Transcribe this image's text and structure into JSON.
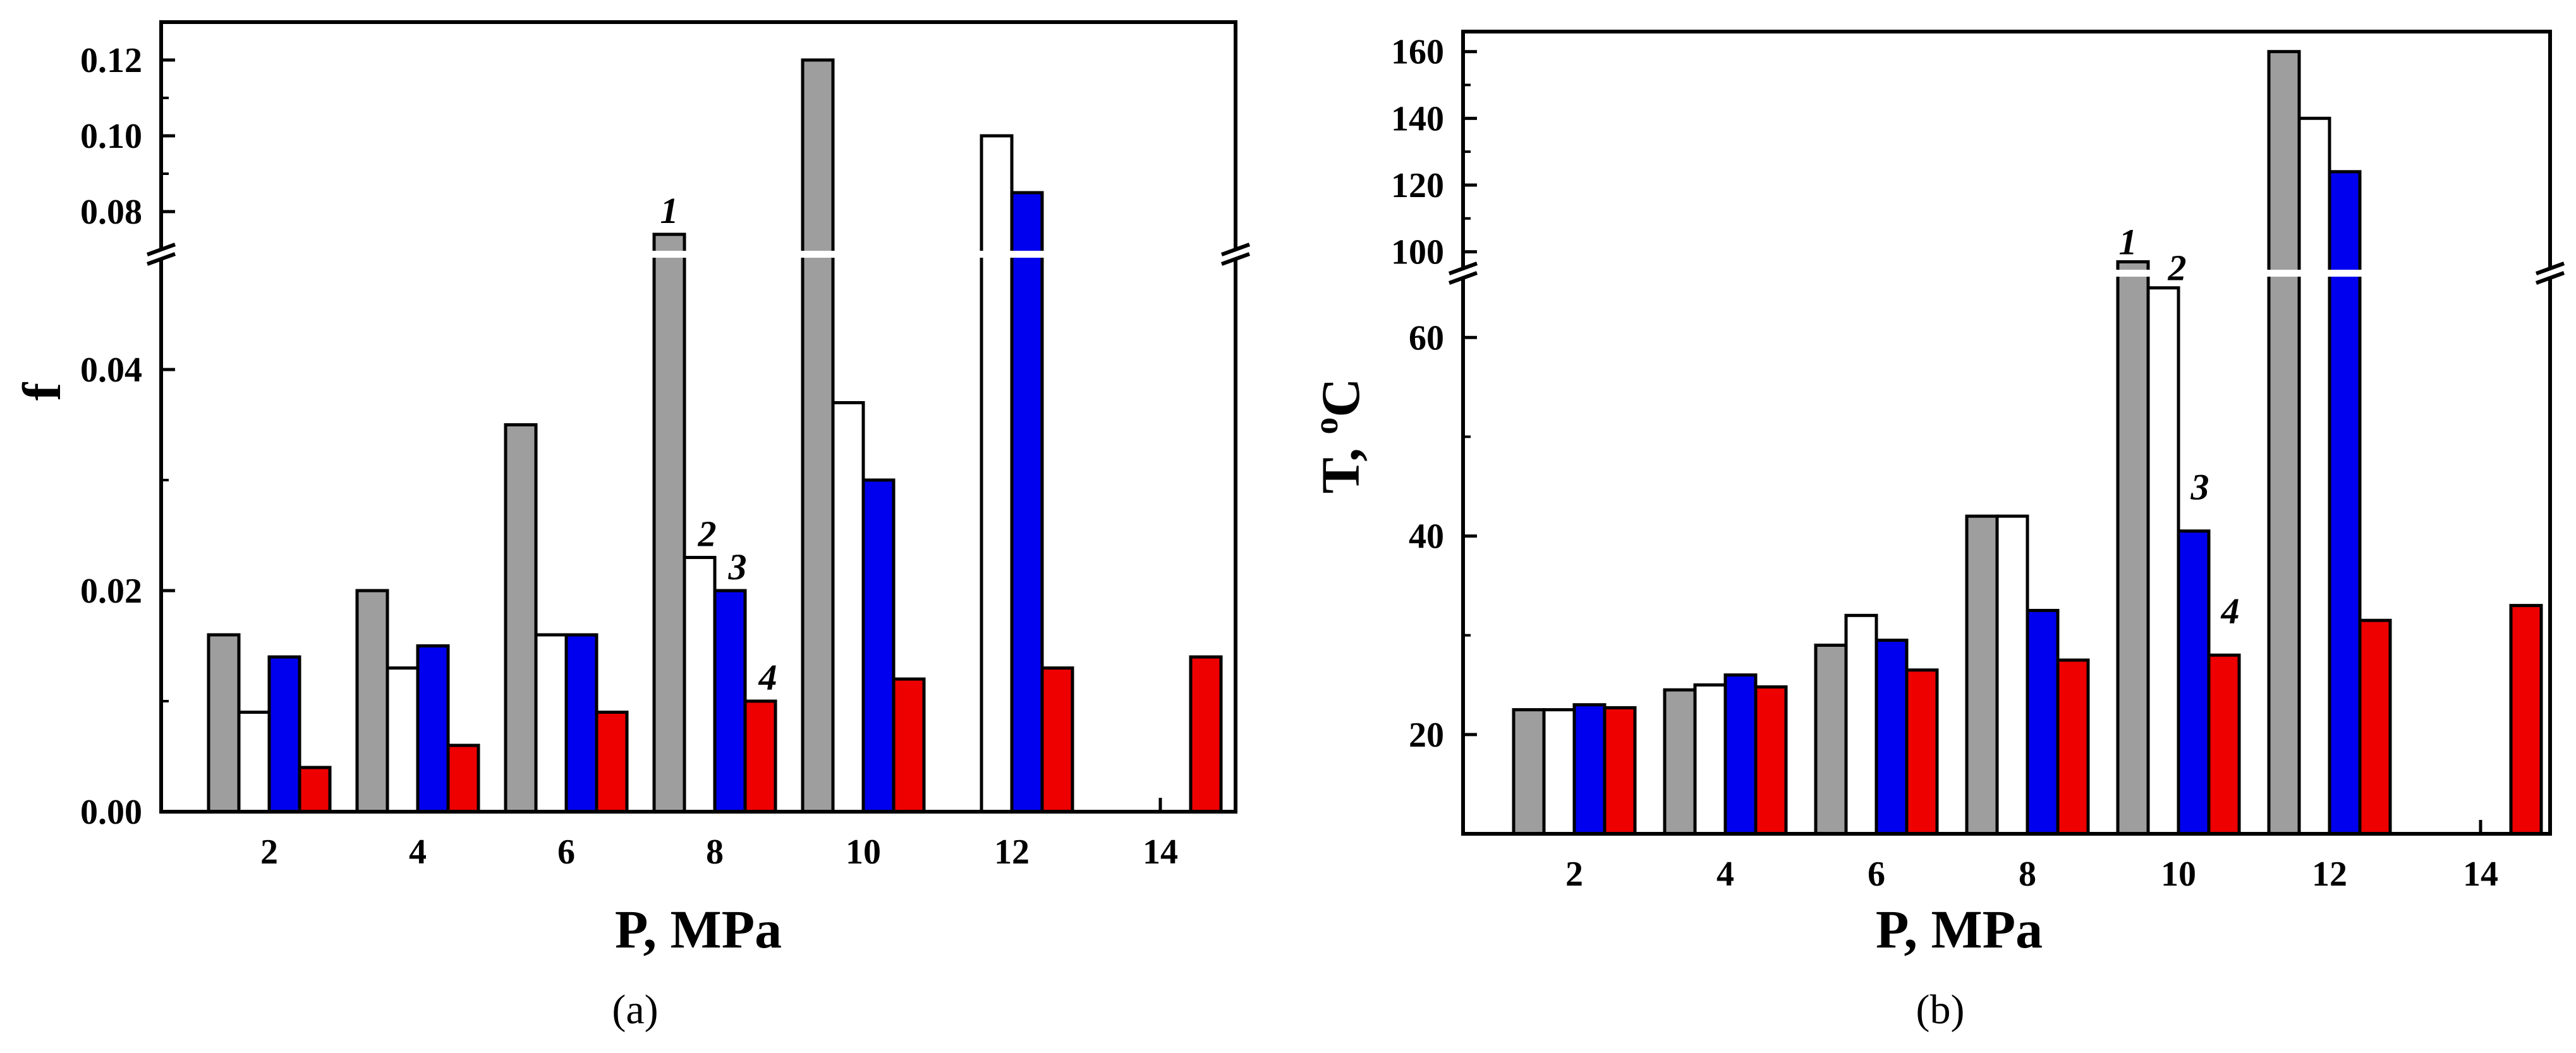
{
  "chart_data": [
    {
      "type": "bar",
      "panel_label": "(a)",
      "xlabel": "P, MPa",
      "ylabel": "f",
      "categories": [
        "2",
        "4",
        "6",
        "8",
        "10",
        "12",
        "14"
      ],
      "y_axis_break": {
        "lower_range": [
          0,
          0.05
        ],
        "upper_range": [
          0.07,
          0.13
        ]
      },
      "lower_ticks": [
        "0.00",
        "0.02",
        "0.04"
      ],
      "upper_ticks": [
        "0.08",
        "0.10",
        "0.12"
      ],
      "series": [
        {
          "name": "1",
          "color": "#9e9e9e",
          "values": [
            0.016,
            0.02,
            0.035,
            0.074,
            0.12,
            null,
            null
          ]
        },
        {
          "name": "2",
          "color": "#ffffff",
          "values": [
            0.009,
            0.013,
            0.016,
            0.023,
            0.037,
            0.1,
            null
          ]
        },
        {
          "name": "3",
          "color": "#0000ee",
          "values": [
            0.014,
            0.015,
            0.016,
            0.02,
            0.03,
            0.085,
            null
          ]
        },
        {
          "name": "4",
          "color": "#ee0000",
          "values": [
            0.004,
            0.006,
            0.009,
            0.01,
            0.012,
            0.013,
            0.014
          ]
        }
      ],
      "series_label_category": [
        "8",
        "8",
        "8",
        "8"
      ]
    },
    {
      "type": "bar",
      "panel_label": "(b)",
      "xlabel": "P, MPa",
      "ylabel_main": "T, ",
      "ylabel_sup": "o",
      "ylabel_unit": "C",
      "categories": [
        "2",
        "4",
        "6",
        "8",
        "10",
        "12",
        "14"
      ],
      "y_axis_break": {
        "lower_range": [
          10,
          66
        ],
        "upper_range": [
          95,
          166
        ]
      },
      "lower_ticks": [
        "20",
        "40",
        "60"
      ],
      "upper_ticks": [
        "100",
        "120",
        "140",
        "160"
      ],
      "series": [
        {
          "name": "1",
          "color": "#9e9e9e",
          "values": [
            22.5,
            24.5,
            29,
            42,
            97,
            160,
            null
          ]
        },
        {
          "name": "2",
          "color": "#ffffff",
          "values": [
            22.5,
            25,
            32,
            42,
            65,
            140,
            null
          ]
        },
        {
          "name": "3",
          "color": "#0000ee",
          "values": [
            23,
            26,
            29.5,
            32.5,
            40.5,
            124,
            null
          ]
        },
        {
          "name": "4",
          "color": "#ee0000",
          "values": [
            22.7,
            24.8,
            26.5,
            27.5,
            28,
            31.5,
            33
          ]
        }
      ],
      "series_label_category": [
        "10",
        "10",
        "10",
        "10"
      ]
    }
  ]
}
